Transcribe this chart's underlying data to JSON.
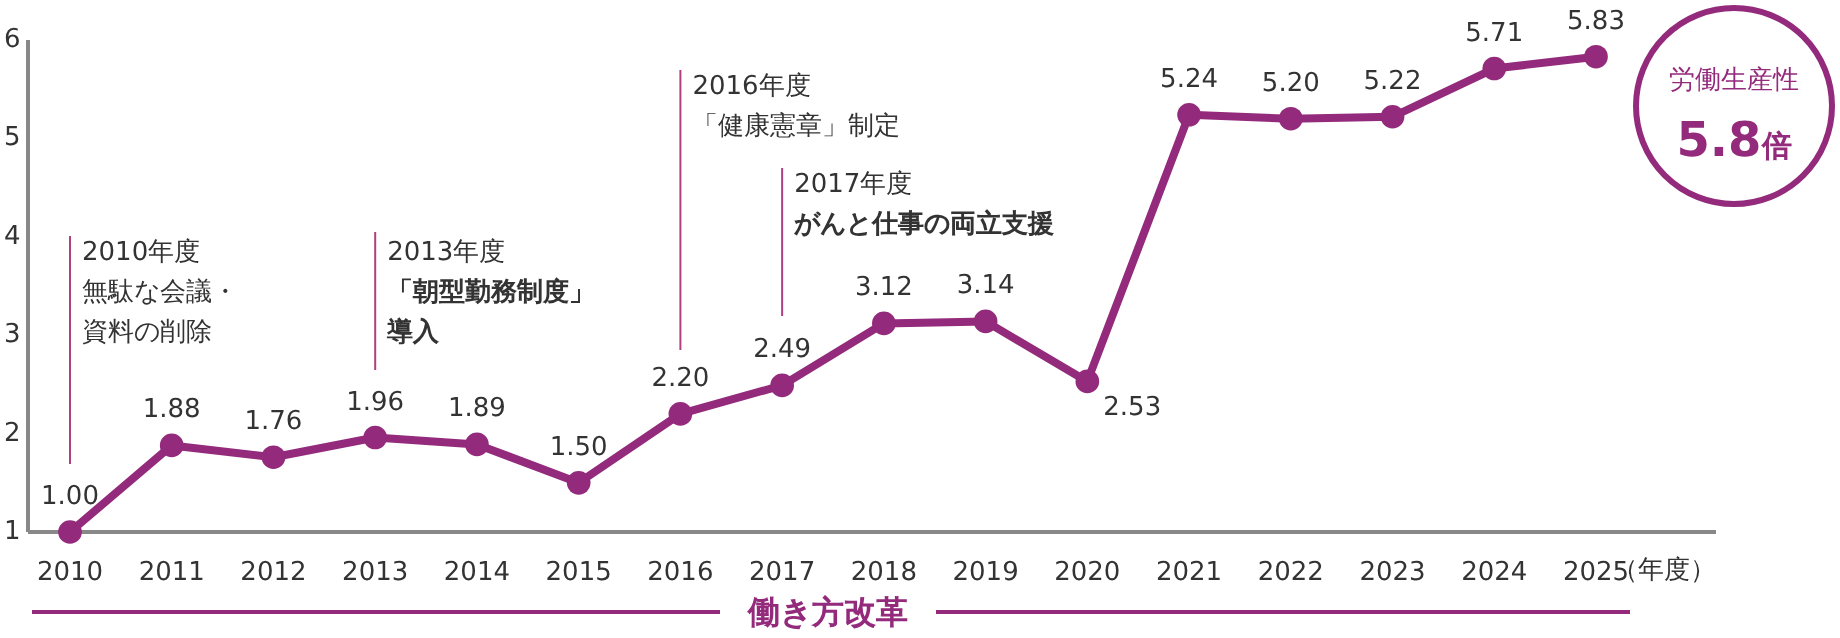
{
  "chart_data": {
    "type": "line",
    "categories": [
      "2010",
      "2011",
      "2012",
      "2013",
      "2014",
      "2015",
      "2016",
      "2017",
      "2018",
      "2019",
      "2020",
      "2021",
      "2022",
      "2023",
      "2024",
      "2025"
    ],
    "series": [
      {
        "color": "#932a7b",
        "values": [
          1.0,
          1.88,
          1.76,
          1.96,
          1.89,
          1.5,
          2.2,
          2.49,
          3.12,
          3.14,
          2.53,
          5.24,
          5.2,
          5.22,
          5.71,
          5.83
        ],
        "value_labels": [
          "1.00",
          "1.88",
          "1.76",
          "1.96",
          "1.89",
          "1.50",
          "2.20",
          "2.49",
          "3.12",
          "3.14",
          "2.53",
          "5.24",
          "5.20",
          "5.22",
          "5.71",
          "5.83"
        ]
      }
    ],
    "ylim": [
      1,
      6
    ],
    "yticks": [
      1,
      2,
      3,
      4,
      5,
      6
    ],
    "xlabel": "（年度）",
    "marker": "circle",
    "line_style": "solid",
    "grid": false,
    "annotations": [
      "2010年度",
      "無駄な会議・",
      "資料の削除",
      "2013年度",
      "「朝型勤務制度」",
      "導入",
      "2016年度",
      "「健康憲章」制定",
      "2017年度",
      "がんと仕事の両立支援",
      "働き方改革",
      "労働生産性",
      "5.8倍"
    ]
  }
}
